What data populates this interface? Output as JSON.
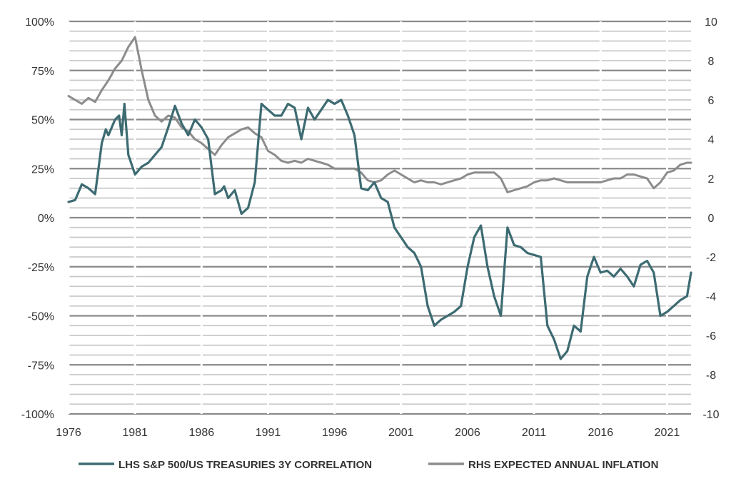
{
  "chart_data": {
    "type": "line",
    "title": "",
    "x_ticks": [
      "1976",
      "1981",
      "1986",
      "1991",
      "1996",
      "2001",
      "2006",
      "2011",
      "2016",
      "2021"
    ],
    "x_range": [
      1976,
      2022.8
    ],
    "y_left": {
      "range": [
        -100,
        100
      ],
      "ticks": [
        100,
        75,
        50,
        25,
        0,
        -25,
        -50,
        -75,
        -100
      ],
      "tick_labels": [
        "100%",
        "75%",
        "50%",
        "25%",
        "0%",
        "-25%",
        "-50%",
        "-75%",
        "-100%"
      ]
    },
    "y_right": {
      "range": [
        -10,
        10
      ],
      "ticks": [
        10,
        8,
        6,
        4,
        2,
        0,
        -2,
        -4,
        -6,
        -8,
        -10
      ],
      "tick_labels": [
        "10",
        "8",
        "6",
        "4",
        "2",
        "0",
        "-2",
        "-4",
        "-6",
        "-8",
        "-10"
      ]
    },
    "grid": true,
    "legend_position": "bottom",
    "series": [
      {
        "name": "LHS S&P 500/US TREASURIES 3Y CORRELATION",
        "axis": "left",
        "color": "#3d6b72",
        "x": [
          1976.0,
          1976.5,
          1977.0,
          1977.5,
          1978.0,
          1978.5,
          1978.8,
          1979.0,
          1979.5,
          1979.8,
          1980.0,
          1980.2,
          1980.5,
          1981.0,
          1981.5,
          1982.0,
          1982.5,
          1983.0,
          1983.5,
          1984.0,
          1984.5,
          1985.0,
          1985.5,
          1986.0,
          1986.5,
          1987.0,
          1987.5,
          1987.7,
          1988.0,
          1988.5,
          1989.0,
          1989.5,
          1990.0,
          1990.5,
          1991.0,
          1991.5,
          1992.0,
          1992.5,
          1993.0,
          1993.5,
          1994.0,
          1994.5,
          1995.0,
          1995.5,
          1996.0,
          1996.5,
          1997.0,
          1997.5,
          1998.0,
          1998.5,
          1999.0,
          1999.5,
          2000.0,
          2000.5,
          2001.0,
          2001.5,
          2002.0,
          2002.5,
          2003.0,
          2003.5,
          2004.0,
          2004.5,
          2005.0,
          2005.5,
          2006.0,
          2006.5,
          2007.0,
          2007.5,
          2008.0,
          2008.5,
          2009.0,
          2009.5,
          2010.0,
          2010.5,
          2011.0,
          2011.5,
          2012.0,
          2012.5,
          2013.0,
          2013.5,
          2014.0,
          2014.5,
          2015.0,
          2015.5,
          2016.0,
          2016.5,
          2017.0,
          2017.5,
          2018.0,
          2018.5,
          2019.0,
          2019.5,
          2020.0,
          2020.5,
          2021.0,
          2021.5,
          2022.0,
          2022.5,
          2022.8
        ],
        "values": [
          8,
          9,
          17,
          15,
          12,
          38,
          45,
          42,
          50,
          52,
          42,
          58,
          32,
          22,
          26,
          28,
          32,
          36,
          46,
          57,
          48,
          42,
          50,
          46,
          40,
          12,
          14,
          16,
          10,
          14,
          2,
          5,
          18,
          58,
          55,
          52,
          52,
          58,
          56,
          40,
          56,
          50,
          55,
          60,
          58,
          60,
          52,
          42,
          15,
          14,
          18,
          10,
          8,
          -5,
          -10,
          -15,
          -18,
          -25,
          -45,
          -55,
          -52,
          -50,
          -48,
          -45,
          -25,
          -10,
          -4,
          -25,
          -40,
          -50,
          -5,
          -14,
          -15,
          -18,
          -19,
          -20,
          -55,
          -62,
          -72,
          -68,
          -55,
          -58,
          -30,
          -20,
          -28,
          -27,
          -30,
          -26,
          -30,
          -35,
          -24,
          -22,
          -28,
          -50,
          -48,
          -45,
          -42,
          -40,
          -28
        ],
        "name_visible": true
      },
      {
        "name": "RHS EXPECTED ANNUAL INFLATION",
        "axis": "right",
        "color": "#8c8c8c",
        "x": [
          1976.0,
          1976.5,
          1977.0,
          1977.5,
          1978.0,
          1978.5,
          1979.0,
          1979.5,
          1980.0,
          1980.5,
          1981.0,
          1981.5,
          1982.0,
          1982.5,
          1983.0,
          1983.5,
          1984.0,
          1984.5,
          1985.0,
          1985.5,
          1986.0,
          1986.5,
          1987.0,
          1987.5,
          1988.0,
          1988.5,
          1989.0,
          1989.5,
          1990.0,
          1990.5,
          1991.0,
          1991.5,
          1992.0,
          1992.5,
          1993.0,
          1993.5,
          1994.0,
          1994.5,
          1995.0,
          1995.5,
          1996.0,
          1996.5,
          1997.0,
          1997.5,
          1998.0,
          1998.5,
          1999.0,
          1999.5,
          2000.0,
          2000.5,
          2001.0,
          2001.5,
          2002.0,
          2002.5,
          2003.0,
          2003.5,
          2004.0,
          2004.5,
          2005.0,
          2005.5,
          2006.0,
          2006.5,
          2007.0,
          2007.5,
          2008.0,
          2008.5,
          2009.0,
          2009.5,
          2010.0,
          2010.5,
          2011.0,
          2011.5,
          2012.0,
          2012.5,
          2013.0,
          2013.5,
          2014.0,
          2014.5,
          2015.0,
          2015.5,
          2016.0,
          2016.5,
          2017.0,
          2017.5,
          2018.0,
          2018.5,
          2019.0,
          2019.5,
          2020.0,
          2020.5,
          2021.0,
          2021.5,
          2022.0,
          2022.5,
          2022.8
        ],
        "values": [
          6.2,
          6.0,
          5.8,
          6.1,
          5.9,
          6.5,
          7.0,
          7.6,
          8.0,
          8.7,
          9.2,
          7.5,
          6.0,
          5.2,
          4.9,
          5.2,
          5.1,
          4.6,
          4.4,
          4.0,
          3.8,
          3.5,
          3.2,
          3.7,
          4.1,
          4.3,
          4.5,
          4.6,
          4.3,
          4.1,
          3.4,
          3.2,
          2.9,
          2.8,
          2.9,
          2.8,
          3.0,
          2.9,
          2.8,
          2.7,
          2.5,
          2.5,
          2.5,
          2.5,
          2.3,
          1.9,
          1.8,
          1.9,
          2.2,
          2.4,
          2.2,
          2.0,
          1.8,
          1.9,
          1.8,
          1.8,
          1.7,
          1.8,
          1.9,
          2.0,
          2.2,
          2.3,
          2.3,
          2.3,
          2.3,
          2.0,
          1.3,
          1.4,
          1.5,
          1.6,
          1.8,
          1.9,
          1.9,
          2.0,
          1.9,
          1.8,
          1.8,
          1.8,
          1.8,
          1.8,
          1.8,
          1.9,
          2.0,
          2.0,
          2.2,
          2.2,
          2.1,
          2.0,
          1.5,
          1.8,
          2.3,
          2.4,
          2.7,
          2.8,
          2.8
        ]
      }
    ]
  }
}
